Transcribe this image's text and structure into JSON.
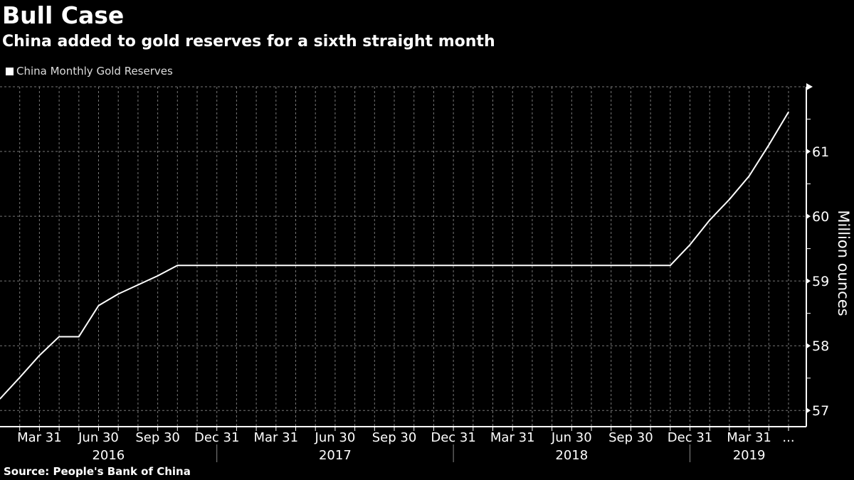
{
  "chart_data": {
    "type": "line",
    "title": "Bull Case",
    "subtitle": "China added to gold reserves for a sixth straight month",
    "legend": [
      "China Monthly Gold Reserves"
    ],
    "ylabel": "Million ounces",
    "ylim": [
      56.75,
      62
    ],
    "yticks": [
      57,
      58,
      59,
      60,
      61
    ],
    "grid": true,
    "x_start": "2016-01",
    "x_tick_labels": [
      {
        "label": "Mar 31",
        "month_index": 2
      },
      {
        "label": "Jun 30",
        "month_index": 5
      },
      {
        "label": "Sep 30",
        "month_index": 8
      },
      {
        "label": "Dec 31",
        "month_index": 11
      },
      {
        "label": "Mar 31",
        "month_index": 14
      },
      {
        "label": "Jun 30",
        "month_index": 17
      },
      {
        "label": "Sep 30",
        "month_index": 20
      },
      {
        "label": "Dec 31",
        "month_index": 23
      },
      {
        "label": "Mar 31",
        "month_index": 26
      },
      {
        "label": "Jun 30",
        "month_index": 29
      },
      {
        "label": "Sep 30",
        "month_index": 32
      },
      {
        "label": "Dec 31",
        "month_index": 35
      },
      {
        "label": "Mar 31",
        "month_index": 38
      },
      {
        "label": "...",
        "month_index": 40
      }
    ],
    "years": [
      {
        "label": "2016",
        "center": 5.5
      },
      {
        "label": "2017",
        "center": 17
      },
      {
        "label": "2018",
        "center": 29
      },
      {
        "label": "2019",
        "center": 38
      }
    ],
    "series": [
      {
        "name": "China Monthly Gold Reserves",
        "values": [
          57.18,
          57.51,
          57.85,
          58.14,
          58.14,
          58.62,
          58.8,
          58.94,
          59.08,
          59.24,
          59.24,
          59.24,
          59.24,
          59.24,
          59.24,
          59.24,
          59.24,
          59.24,
          59.24,
          59.24,
          59.24,
          59.24,
          59.24,
          59.24,
          59.24,
          59.24,
          59.24,
          59.24,
          59.24,
          59.24,
          59.24,
          59.24,
          59.24,
          59.24,
          59.24,
          59.56,
          59.94,
          60.26,
          60.62,
          61.1,
          61.61
        ]
      }
    ],
    "source": "Source: People's Bank of China"
  },
  "colors": {
    "background": "#000000",
    "line": "#ffffff",
    "grid": "#777777"
  }
}
